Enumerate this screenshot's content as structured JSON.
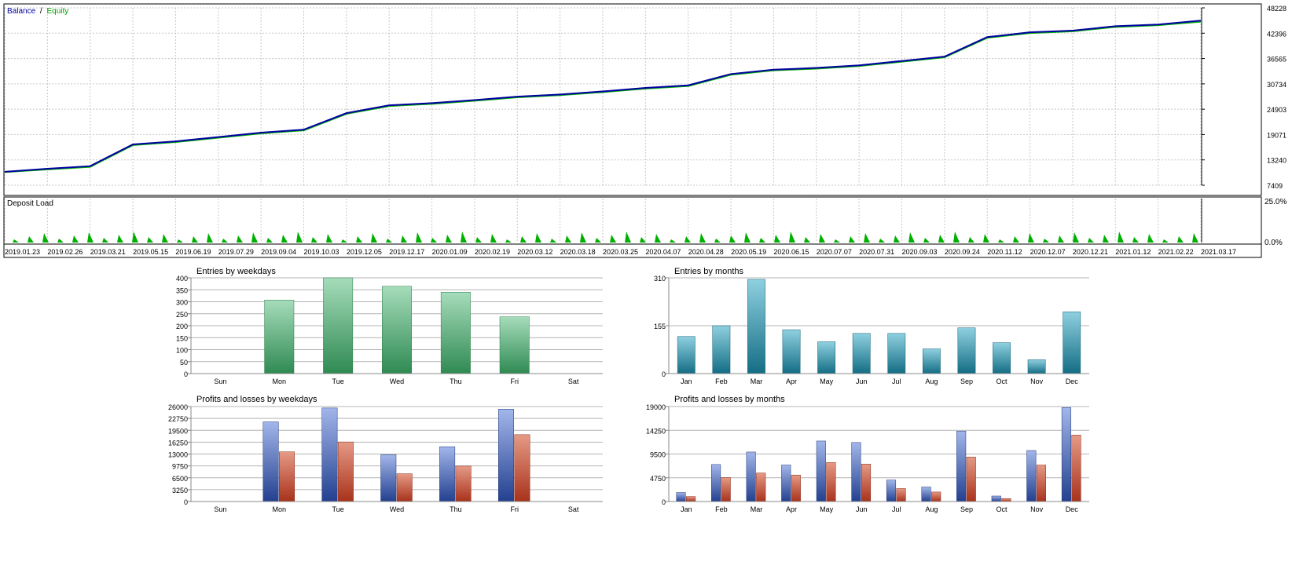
{
  "legend": {
    "balance_label": "Balance",
    "separator": "/",
    "equity_label": "Equity",
    "balance_color": "#0000a0",
    "equity_color": "#00b000"
  },
  "deposit_load": {
    "label": "Deposit Load",
    "ticks": [
      "25.0%",
      "0.0%"
    ]
  },
  "chart_data": [
    {
      "type": "line",
      "title": "",
      "legend": [
        "Balance",
        "Equity"
      ],
      "yticks": [
        7409,
        13240,
        19071,
        24903,
        30734,
        36565,
        42396,
        48228
      ],
      "ylim": [
        7409,
        48228
      ],
      "grid": true,
      "xticks": [
        "2019.01.23",
        "2019.02.26",
        "2019.03.21",
        "2019.05.15",
        "2019.06.19",
        "2019.07.29",
        "2019.09.04",
        "2019.10.03",
        "2019.12.05",
        "2019.12.17",
        "2020.01.09",
        "2020.02.19",
        "2020.03.12",
        "2020.03.18",
        "2020.03.25",
        "2020.04.07",
        "2020.04.28",
        "2020.05.19",
        "2020.06.15",
        "2020.07.07",
        "2020.07.31",
        "2020.09.03",
        "2020.09.24",
        "2020.11.12",
        "2020.12.07",
        "2020.12.21",
        "2021.01.12",
        "2021.02.22",
        "2021.03.17"
      ],
      "series": [
        {
          "name": "Balance",
          "x": [
            0,
            1,
            2,
            3,
            4,
            5,
            6,
            7,
            8,
            9,
            10,
            11,
            12,
            13,
            14,
            15,
            16,
            17,
            18,
            19,
            20,
            21,
            22,
            23,
            24,
            25,
            26,
            27,
            28
          ],
          "values": [
            10500,
            11200,
            11800,
            16800,
            17500,
            18500,
            19500,
            20200,
            24000,
            25800,
            26300,
            27000,
            27800,
            28300,
            29000,
            29800,
            30400,
            33000,
            34000,
            34400,
            35000,
            36000,
            37000,
            41500,
            42600,
            43000,
            44000,
            44400,
            45300
          ]
        },
        {
          "name": "Equity",
          "x": [
            0,
            1,
            2,
            3,
            4,
            5,
            6,
            7,
            8,
            9,
            10,
            11,
            12,
            13,
            14,
            15,
            16,
            17,
            18,
            19,
            20,
            21,
            22,
            23,
            24,
            25,
            26,
            27,
            28
          ],
          "values": [
            10400,
            11000,
            11600,
            16600,
            17300,
            18300,
            19300,
            20000,
            23800,
            25600,
            26100,
            26800,
            27600,
            28100,
            28800,
            29600,
            30200,
            32800,
            33800,
            34200,
            34800,
            35800,
            36800,
            41300,
            42400,
            42800,
            43800,
            44200,
            45000
          ]
        }
      ]
    },
    {
      "type": "bar",
      "title": "Entries by weekdays",
      "categories": [
        "Sun",
        "Mon",
        "Tue",
        "Wed",
        "Thu",
        "Fri",
        "Sat"
      ],
      "values": [
        0,
        307,
        400,
        365,
        340,
        237,
        0
      ],
      "yticks": [
        0,
        50,
        100,
        150,
        200,
        250,
        300,
        350,
        400
      ],
      "ylim": [
        0,
        400
      ]
    },
    {
      "type": "bar",
      "title": "Entries by months",
      "categories": [
        "Jan",
        "Feb",
        "Mar",
        "Apr",
        "May",
        "Jun",
        "Jul",
        "Aug",
        "Sep",
        "Oct",
        "Nov",
        "Dec"
      ],
      "values": [
        120,
        155,
        305,
        142,
        103,
        130,
        130,
        80,
        148,
        100,
        45,
        200
      ],
      "yticks": [
        0,
        155,
        310
      ],
      "ylim": [
        0,
        310
      ]
    },
    {
      "type": "bar",
      "title": "Profits and losses by weekdays",
      "categories": [
        "Sun",
        "Mon",
        "Tue",
        "Wed",
        "Thu",
        "Fri",
        "Sat"
      ],
      "series": [
        {
          "name": "Profits",
          "values": [
            0,
            21800,
            25600,
            12800,
            15000,
            25300,
            0
          ]
        },
        {
          "name": "Losses",
          "values": [
            0,
            13600,
            16300,
            7600,
            9700,
            18300,
            0
          ]
        }
      ],
      "yticks": [
        0,
        3250,
        6500,
        9750,
        13000,
        16250,
        19500,
        22750,
        26000
      ],
      "ylim": [
        0,
        26000
      ]
    },
    {
      "type": "bar",
      "title": "Profits and losses by months",
      "categories": [
        "Jan",
        "Feb",
        "Mar",
        "Apr",
        "May",
        "Jun",
        "Jul",
        "Aug",
        "Sep",
        "Oct",
        "Nov",
        "Dec"
      ],
      "series": [
        {
          "name": "Profits",
          "values": [
            1800,
            7400,
            9900,
            7300,
            12100,
            11800,
            4300,
            2900,
            14100,
            1100,
            10200,
            18800
          ]
        },
        {
          "name": "Losses",
          "values": [
            1000,
            4800,
            5700,
            5300,
            7800,
            7500,
            2600,
            1900,
            8900,
            600,
            7300,
            13300
          ]
        }
      ],
      "yticks": [
        0,
        4750,
        9500,
        14250,
        19000
      ],
      "ylim": [
        0,
        19000
      ]
    }
  ]
}
